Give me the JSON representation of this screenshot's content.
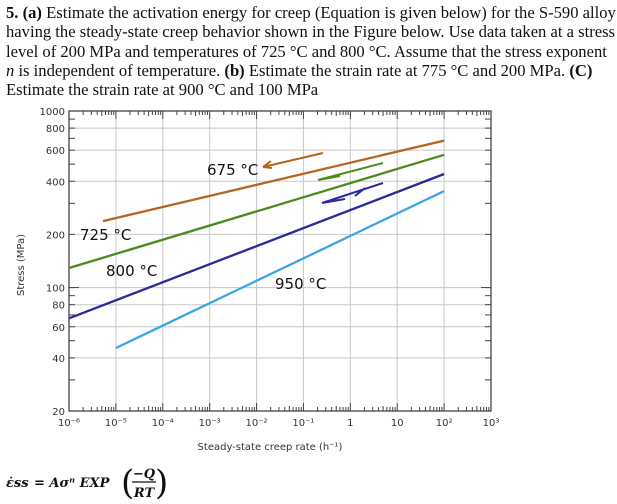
{
  "question": {
    "number": "5.",
    "part_a_label": "(a)",
    "part_a_text": " Estimate the activation energy for creep (Equation is given below) for the S-590 alloy having the steady-state creep behavior shown in the Figure below. Use data taken at a stress level of 200 MPa and temperatures of 725 °C and 800 °C. Assume that the stress exponent ",
    "n_symbol": "n",
    "part_a_text_end": " is independent of temperature. ",
    "part_b_label": "(b)",
    "part_b_text": " Estimate the strain rate at 775 °C and 200 MPa. ",
    "part_c_label": "(C)",
    "part_c_text": " Estimate the strain rate at 900 °C and 100 MPa"
  },
  "chart_data": {
    "type": "line",
    "xlabel": "Steady-state creep rate (h⁻¹)",
    "ylabel": "Stress (MPa)",
    "xscale": "log",
    "yscale": "log",
    "xlim": [
      1e-06,
      1000.0
    ],
    "ylim": [
      20,
      1000
    ],
    "grid": true,
    "x_tick_labels": [
      "10⁻⁶",
      "10⁻⁵",
      "10⁻⁴",
      "10⁻³",
      "10⁻²",
      "10⁻¹",
      "1",
      "10",
      "10²",
      "10³"
    ],
    "y_tick_labels": [
      "1000",
      "800",
      "600",
      "400",
      "200",
      "100",
      "80",
      "60",
      "40",
      "20"
    ],
    "series": [
      {
        "name": "675 °C",
        "color": "#b5651d",
        "x": [
          5.3e-06,
          100
        ],
        "y": [
          238,
          680
        ]
      },
      {
        "name": "725 °C",
        "color": "#4c8a1c",
        "x": [
          1e-06,
          100
        ],
        "y": [
          129,
          565
        ]
      },
      {
        "name": "800 °C",
        "color": "#2a2a9a",
        "x": [
          1e-06,
          100
        ],
        "y": [
          67,
          440
        ]
      },
      {
        "name": "950 °C",
        "color": "#3aa6e6",
        "x": [
          1e-05,
          100
        ],
        "y": [
          45.5,
          352
        ]
      }
    ]
  },
  "formula": {
    "lhs": "ε̇ss",
    "rhs": "= Aσⁿ EXP",
    "numerator": "−Q",
    "denominator": "RT"
  }
}
